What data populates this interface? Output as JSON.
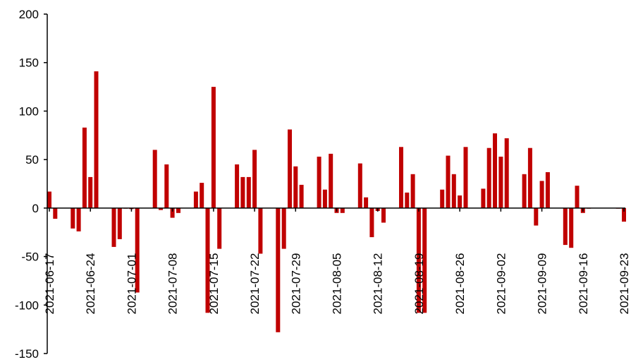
{
  "chart_data": {
    "type": "bar",
    "title": "",
    "xlabel": "",
    "ylabel": "",
    "ylim": [
      -150,
      200
    ],
    "y_ticks": [
      200,
      150,
      100,
      50,
      0,
      -50,
      -100,
      -150
    ],
    "x_tick_labels": [
      "2021-06-17",
      "2021-06-24",
      "2021-07-01",
      "2021-07-08",
      "2021-07-15",
      "2021-07-22",
      "2021-07-29",
      "2021-08-05",
      "2021-08-12",
      "2021-08-19",
      "2021-08-26",
      "2021-09-02",
      "2021-09-09",
      "2021-09-16",
      "2021-09-23"
    ],
    "grid": false,
    "legend": "none",
    "bar_color": "#c00000",
    "categories": [
      "2021-06-17",
      "2021-06-18",
      "2021-06-21",
      "2021-06-22",
      "2021-06-23",
      "2021-06-24",
      "2021-06-25",
      "2021-06-28",
      "2021-06-29",
      "2021-06-30",
      "2021-07-01",
      "2021-07-02",
      "2021-07-05",
      "2021-07-06",
      "2021-07-07",
      "2021-07-08",
      "2021-07-09",
      "2021-07-12",
      "2021-07-13",
      "2021-07-14",
      "2021-07-15",
      "2021-07-16",
      "2021-07-19",
      "2021-07-20",
      "2021-07-21",
      "2021-07-22",
      "2021-07-23",
      "2021-07-26",
      "2021-07-27",
      "2021-07-28",
      "2021-07-29",
      "2021-07-30",
      "2021-08-02",
      "2021-08-03",
      "2021-08-04",
      "2021-08-05",
      "2021-08-06",
      "2021-08-09",
      "2021-08-10",
      "2021-08-11",
      "2021-08-12",
      "2021-08-13",
      "2021-08-16",
      "2021-08-17",
      "2021-08-18",
      "2021-08-19",
      "2021-08-20",
      "2021-08-23",
      "2021-08-24",
      "2021-08-25",
      "2021-08-26",
      "2021-08-27",
      "2021-08-30",
      "2021-08-31",
      "2021-09-01",
      "2021-09-02",
      "2021-09-03",
      "2021-09-06",
      "2021-09-07",
      "2021-09-08",
      "2021-09-09",
      "2021-09-10",
      "2021-09-13",
      "2021-09-14",
      "2021-09-15",
      "2021-09-16",
      "2021-09-17",
      "2021-09-22",
      "2021-09-23"
    ],
    "values": [
      17,
      -11,
      -21,
      -24,
      83,
      32,
      141,
      -40,
      -32,
      0,
      -1,
      -87,
      60,
      -2,
      45,
      -10,
      -5,
      17,
      26,
      -108,
      125,
      -42,
      45,
      32,
      32,
      60,
      -47,
      -128,
      -42,
      81,
      43,
      24,
      53,
      19,
      56,
      -5,
      -5,
      46,
      11,
      -30,
      -3,
      -15,
      63,
      16,
      35,
      -108,
      -108,
      19,
      54,
      35,
      13,
      63,
      20,
      62,
      77,
      53,
      72,
      35,
      62,
      -18,
      28,
      37,
      -38,
      -41,
      23,
      -5,
      0,
      0,
      -14
    ]
  }
}
